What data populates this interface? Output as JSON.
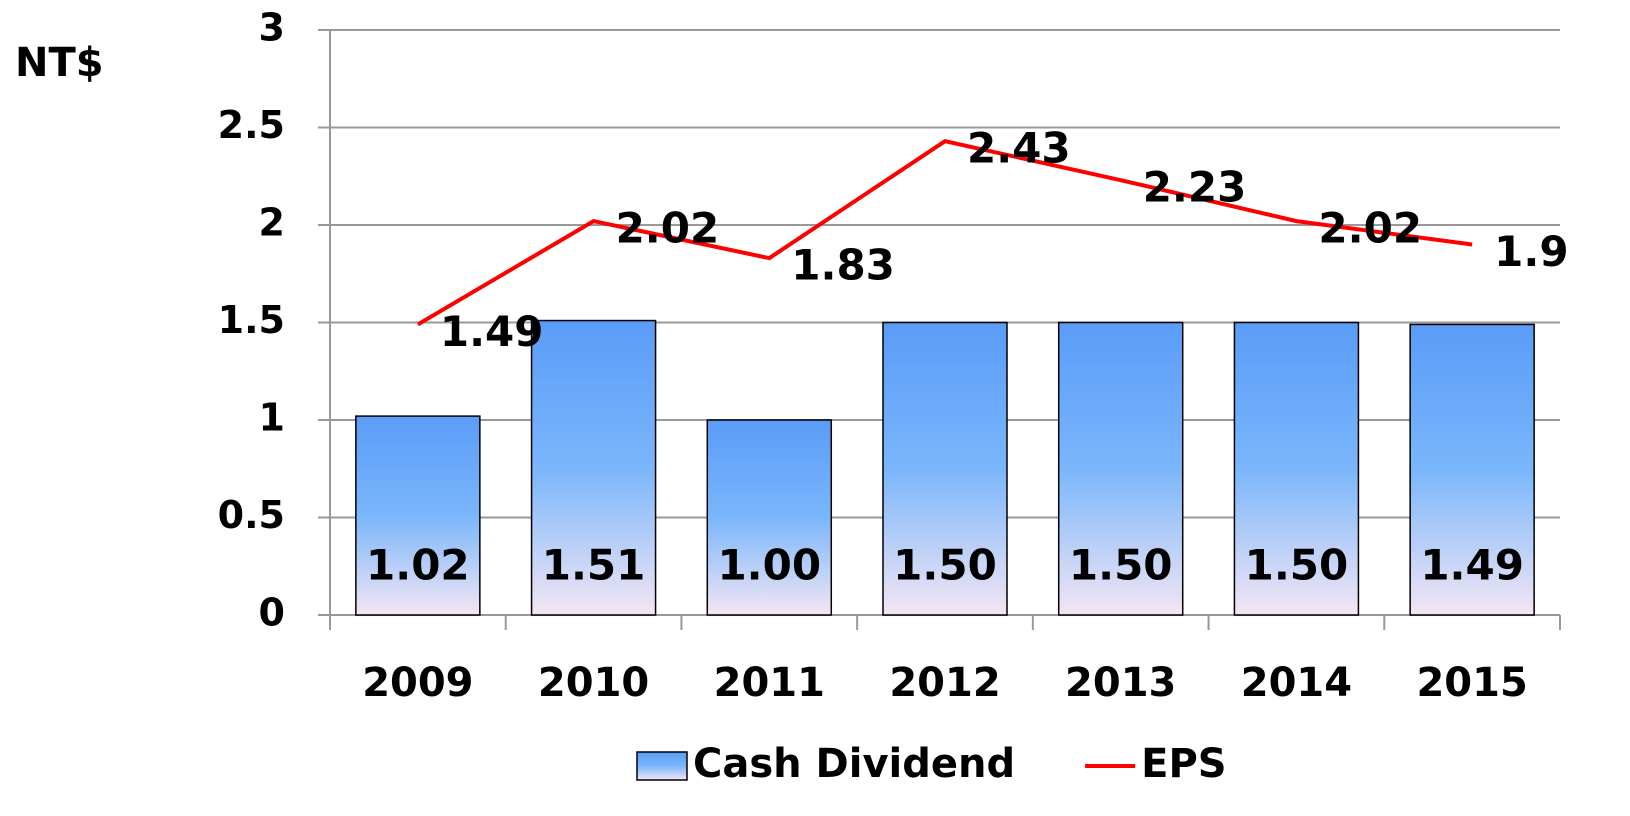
{
  "chart_data": {
    "type": "bar",
    "ylabel": "NT$",
    "categories": [
      "2009",
      "2010",
      "2011",
      "2012",
      "2013",
      "2014",
      "2015"
    ],
    "series": [
      {
        "name": "Cash Dividend",
        "type": "bar",
        "color": "#5a9cf8",
        "values": [
          1.02,
          1.51,
          1.0,
          1.5,
          1.5,
          1.5,
          1.49
        ],
        "value_labels": [
          "1.02",
          "1.51",
          "1.00",
          "1.50",
          "1.50",
          "1.50",
          "1.49"
        ]
      },
      {
        "name": "EPS",
        "type": "line",
        "color": "#ff0000",
        "values": [
          1.49,
          2.02,
          1.83,
          2.43,
          2.23,
          2.02,
          1.9
        ]
      }
    ],
    "ylim": [
      0,
      3
    ],
    "yticks": [
      0,
      0.5,
      1,
      1.5,
      2,
      2.5,
      3
    ],
    "grid": true,
    "legend": "bottom"
  }
}
